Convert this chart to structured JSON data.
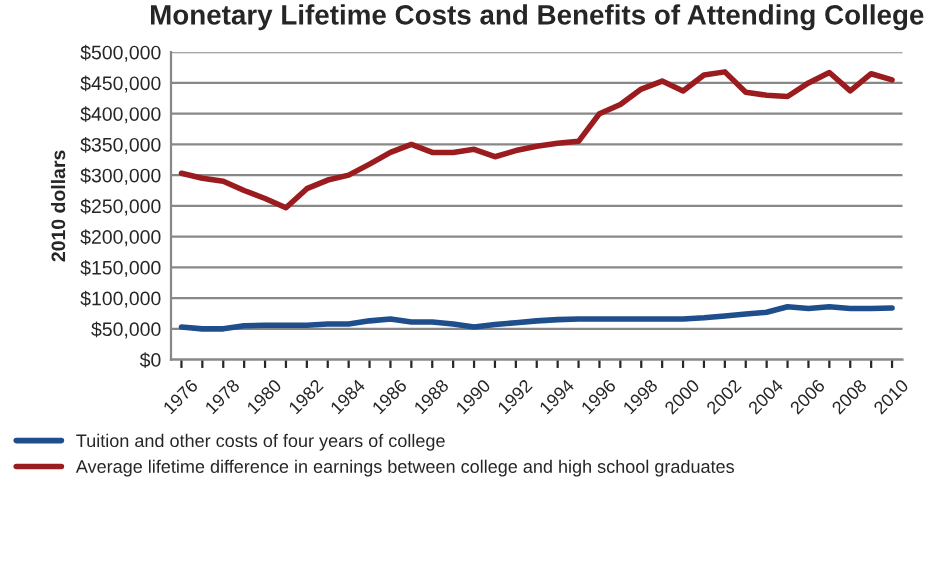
{
  "chart_data": {
    "type": "line",
    "title": "Monetary Lifetime Costs and Benefits of Attending College",
    "ylabel": "2010 dollars",
    "x": [
      1976,
      1977,
      1978,
      1979,
      1980,
      1981,
      1982,
      1983,
      1984,
      1985,
      1986,
      1987,
      1988,
      1989,
      1990,
      1991,
      1992,
      1993,
      1994,
      1995,
      1996,
      1997,
      1998,
      1999,
      2000,
      2001,
      2002,
      2003,
      2004,
      2005,
      2006,
      2007,
      2008,
      2009,
      2010
    ],
    "series": [
      {
        "name": "Tuition and other costs of four years of college",
        "color": "#1f4e8c",
        "values": [
          53000,
          50000,
          50000,
          55000,
          56000,
          56000,
          56000,
          58000,
          58000,
          63000,
          66000,
          61000,
          61000,
          58000,
          53000,
          57000,
          60000,
          63000,
          65000,
          66000,
          66000,
          66000,
          66000,
          66000,
          66000,
          68000,
          71000,
          74000,
          77000,
          86000,
          83000,
          86000,
          83000,
          83000,
          84000
        ]
      },
      {
        "name": "Average lifetime difference in earnings between college and high school graduates",
        "color": "#9b1c1f",
        "values": [
          303000,
          295000,
          290000,
          275000,
          262000,
          247000,
          278000,
          292000,
          300000,
          318000,
          337000,
          350000,
          337000,
          337000,
          342000,
          330000,
          340000,
          347000,
          352000,
          355000,
          400000,
          415000,
          440000,
          453000,
          437000,
          463000,
          468000,
          435000,
          430000,
          428000,
          450000,
          467000,
          437000,
          465000,
          455000
        ]
      }
    ],
    "xlim": [
      1975.5,
      2010.5
    ],
    "xticks": [
      1976,
      {
        "value": 1977,
        "label": null
      },
      1978,
      {
        "value": 1979,
        "label": null
      },
      1980,
      {
        "value": 1981,
        "label": null
      },
      1982,
      {
        "value": 1983,
        "label": null
      },
      1984,
      {
        "value": 1985,
        "label": null
      },
      1986,
      {
        "value": 1987,
        "label": null
      },
      1988,
      {
        "value": 1989,
        "label": null
      },
      1990,
      {
        "value": 1991,
        "label": null
      },
      1992,
      {
        "value": 1993,
        "label": null
      },
      1994,
      {
        "value": 1995,
        "label": null
      },
      1996,
      {
        "value": 1997,
        "label": null
      },
      1998,
      {
        "value": 1999,
        "label": null
      },
      2000,
      {
        "value": 2001,
        "label": null
      },
      2002,
      {
        "value": 2003,
        "label": null
      },
      2004,
      {
        "value": 2005,
        "label": null
      },
      2006,
      {
        "value": 2007,
        "label": null
      },
      2008,
      {
        "value": 2009,
        "label": null
      },
      2010
    ],
    "ylim": [
      0,
      500000
    ],
    "yticks": [
      {
        "value": 0,
        "label": "$0"
      },
      {
        "value": 50000,
        "label": "$50,000"
      },
      {
        "value": 100000,
        "label": "$100,000"
      },
      {
        "value": 150000,
        "label": "$150,000"
      },
      {
        "value": 200000,
        "label": "$200,000"
      },
      {
        "value": 250000,
        "label": "$250,000"
      },
      {
        "value": 300000,
        "label": "$300,000"
      },
      {
        "value": 350000,
        "label": "$350,000"
      },
      {
        "value": 400000,
        "label": "$400,000"
      },
      {
        "value": 450000,
        "label": "$450,000"
      },
      {
        "value": 500000,
        "label": "$500,000"
      }
    ],
    "grid": "y",
    "legend": "bottom left",
    "marker": "none",
    "line_style": "solid"
  }
}
